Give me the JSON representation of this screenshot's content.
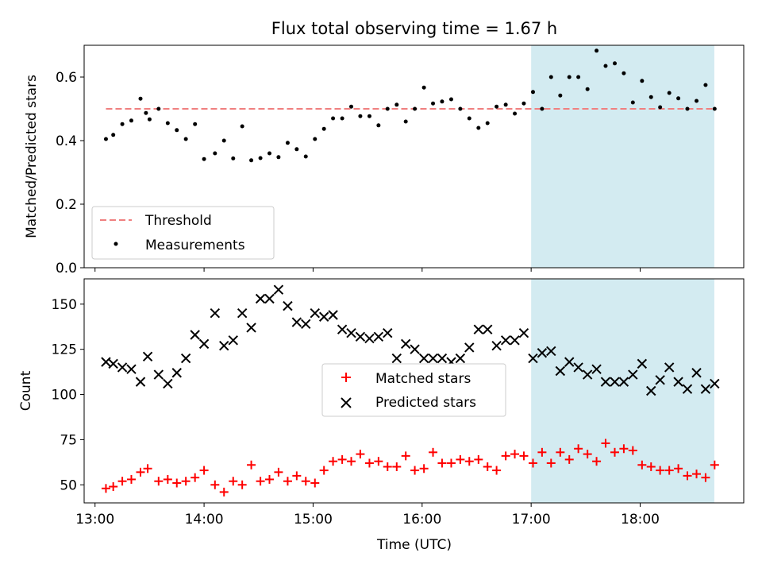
{
  "chart_data": [
    {
      "type": "scatter",
      "title": "Flux total observing time = 1.67 h",
      "xlabel": "",
      "ylabel": "Matched/Predicted stars",
      "ylim": [
        0,
        0.7
      ],
      "yticks": [
        "0.0",
        "0.2",
        "0.4",
        "0.6"
      ],
      "ytick_values": [
        0,
        0.2,
        0.4,
        0.6
      ],
      "xlim_hours": [
        12.9,
        18.95
      ],
      "shaded_region_hours": [
        17.0,
        18.68
      ],
      "shade_color": "#d3ebf1",
      "legend": {
        "placement": "lower-left",
        "entries": [
          "Threshold",
          "Measurements"
        ]
      },
      "threshold": {
        "name": "Threshold",
        "value": 0.5,
        "x_range_hours": [
          13.1,
          18.68
        ],
        "color": "#f08080"
      },
      "measurements": {
        "name": "Measurements",
        "color": "#000000",
        "x_hours": [
          13.1,
          13.167,
          13.25,
          13.333,
          13.417,
          13.467,
          13.5,
          13.583,
          13.667,
          13.75,
          13.833,
          13.917,
          14.0,
          14.1,
          14.183,
          14.267,
          14.35,
          14.433,
          14.517,
          14.6,
          14.683,
          14.767,
          14.85,
          14.933,
          15.017,
          15.1,
          15.183,
          15.267,
          15.35,
          15.433,
          15.517,
          15.6,
          15.683,
          15.767,
          15.85,
          15.933,
          16.017,
          16.1,
          16.183,
          16.267,
          16.35,
          16.433,
          16.517,
          16.6,
          16.683,
          16.767,
          16.85,
          16.933,
          17.017,
          17.1,
          17.183,
          17.267,
          17.35,
          17.433,
          17.517,
          17.6,
          17.683,
          17.767,
          17.85,
          17.933,
          18.017,
          18.1,
          18.183,
          18.267,
          18.35,
          18.433,
          18.517,
          18.6,
          18.683
        ],
        "y": [
          0.405,
          0.418,
          0.452,
          0.463,
          0.532,
          0.487,
          0.467,
          0.5,
          0.455,
          0.433,
          0.405,
          0.452,
          0.342,
          0.36,
          0.4,
          0.344,
          0.445,
          0.338,
          0.345,
          0.36,
          0.348,
          0.393,
          0.373,
          0.35,
          0.405,
          0.437,
          0.47,
          0.47,
          0.507,
          0.477,
          0.477,
          0.448,
          0.5,
          0.513,
          0.46,
          0.5,
          0.567,
          0.517,
          0.523,
          0.53,
          0.5,
          0.47,
          0.44,
          0.455,
          0.507,
          0.513,
          0.485,
          0.517,
          0.553,
          0.5,
          0.6,
          0.542,
          0.6,
          0.6,
          0.562,
          0.683,
          0.635,
          0.643,
          0.612,
          0.52,
          0.588,
          0.537,
          0.505,
          0.55,
          0.533,
          0.5,
          0.525,
          0.575,
          0.5
        ]
      }
    },
    {
      "type": "scatter",
      "title": "",
      "xlabel": "Time (UTC)",
      "ylabel": "Count",
      "ylim": [
        40,
        164
      ],
      "yticks": [
        "50",
        "75",
        "100",
        "125",
        "150"
      ],
      "ytick_values": [
        50,
        75,
        100,
        125,
        150
      ],
      "xticks": [
        "13:00",
        "14:00",
        "15:00",
        "16:00",
        "17:00",
        "18:00"
      ],
      "xtick_hours": [
        13,
        14,
        15,
        16,
        17,
        18
      ],
      "xlim_hours": [
        12.9,
        18.95
      ],
      "shaded_region_hours": [
        17.0,
        18.68
      ],
      "shade_color": "#d3ebf1",
      "legend": {
        "placement": "center",
        "entries": [
          "Matched stars",
          "Predicted stars"
        ]
      },
      "series": [
        {
          "name": "Matched stars",
          "marker": "plus",
          "color": "#ff0000",
          "x_hours": [
            13.1,
            13.167,
            13.25,
            13.333,
            13.417,
            13.483,
            13.583,
            13.667,
            13.75,
            13.833,
            13.917,
            14.0,
            14.1,
            14.183,
            14.267,
            14.35,
            14.433,
            14.517,
            14.6,
            14.683,
            14.767,
            14.85,
            14.933,
            15.017,
            15.1,
            15.183,
            15.267,
            15.35,
            15.433,
            15.517,
            15.6,
            15.683,
            15.767,
            15.85,
            15.933,
            16.017,
            16.1,
            16.183,
            16.267,
            16.35,
            16.433,
            16.517,
            16.6,
            16.683,
            16.767,
            16.85,
            16.933,
            17.017,
            17.1,
            17.183,
            17.267,
            17.35,
            17.433,
            17.517,
            17.6,
            17.683,
            17.767,
            17.85,
            17.933,
            18.017,
            18.1,
            18.183,
            18.267,
            18.35,
            18.433,
            18.517,
            18.6,
            18.683
          ],
          "values": [
            48,
            49,
            52,
            53,
            57,
            59,
            52,
            53,
            51,
            52,
            54,
            58,
            50,
            46,
            52,
            50,
            61,
            52,
            53,
            57,
            52,
            55,
            52,
            51,
            58,
            63,
            64,
            63,
            67,
            62,
            63,
            60,
            60,
            66,
            58,
            59,
            68,
            62,
            62,
            64,
            63,
            64,
            60,
            58,
            66,
            67,
            66,
            62,
            68,
            62,
            68,
            64,
            70,
            67,
            63,
            73,
            68,
            70,
            69,
            61,
            60,
            58,
            58,
            59,
            55,
            56,
            54,
            61
          ]
        },
        {
          "name": "Predicted stars",
          "marker": "x",
          "color": "#000000",
          "x_hours": [
            13.1,
            13.167,
            13.25,
            13.333,
            13.417,
            13.483,
            13.583,
            13.667,
            13.75,
            13.833,
            13.917,
            14.0,
            14.1,
            14.183,
            14.267,
            14.35,
            14.433,
            14.517,
            14.6,
            14.683,
            14.767,
            14.85,
            14.933,
            15.017,
            15.1,
            15.183,
            15.267,
            15.35,
            15.433,
            15.517,
            15.6,
            15.683,
            15.767,
            15.85,
            15.933,
            16.017,
            16.1,
            16.183,
            16.267,
            16.35,
            16.433,
            16.517,
            16.6,
            16.683,
            16.767,
            16.85,
            16.933,
            17.017,
            17.1,
            17.183,
            17.267,
            17.35,
            17.433,
            17.517,
            17.6,
            17.683,
            17.767,
            17.85,
            17.933,
            18.017,
            18.1,
            18.183,
            18.267,
            18.35,
            18.433,
            18.517,
            18.6,
            18.683
          ],
          "values": [
            118,
            117,
            115,
            114,
            107,
            121,
            111,
            106,
            112,
            120,
            133,
            128,
            145,
            127,
            130,
            145,
            137,
            153,
            153,
            158,
            149,
            140,
            139,
            145,
            143,
            144,
            136,
            134,
            132,
            131,
            132,
            134,
            120,
            128,
            125,
            120,
            120,
            120,
            118,
            120,
            126,
            136,
            136,
            127,
            130,
            130,
            134,
            120,
            123,
            124,
            113,
            118,
            115,
            111,
            114,
            107,
            107,
            107,
            111,
            117,
            102,
            108,
            115,
            107,
            103,
            112,
            103,
            106
          ]
        }
      ]
    }
  ]
}
